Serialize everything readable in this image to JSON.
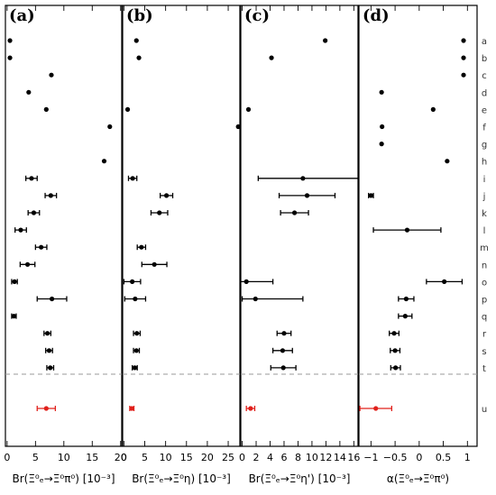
{
  "chart_data": {
    "type": "scatter",
    "row_labels": [
      "a",
      "b",
      "c",
      "d",
      "e",
      "f",
      "g",
      "h",
      "i",
      "j",
      "k",
      "l",
      "m",
      "n",
      "o",
      "p",
      "q",
      "r",
      "s",
      "t",
      "u"
    ],
    "highlight": {
      "row": "u",
      "color": "#e0201b"
    },
    "default_color": "#000000",
    "legend": null,
    "panels": [
      {
        "tag": "(a)",
        "xlabel": "Br(Ξ⁰ₑ→Ξ⁰π⁰) [10⁻³]",
        "xlim": [
          -0.3,
          20.2
        ],
        "xticks": [
          0,
          5,
          10,
          15,
          20
        ],
        "xtick_labels": [
          "0",
          "5",
          "10",
          "15",
          "20"
        ],
        "points": [
          {
            "row": "a",
            "value": 0.5
          },
          {
            "row": "b",
            "value": 0.5
          },
          {
            "row": "c",
            "value": 7.8
          },
          {
            "row": "d",
            "value": 3.8
          },
          {
            "row": "e",
            "value": 6.9
          },
          {
            "row": "f",
            "value": 18.1
          },
          {
            "row": "g",
            "value": null
          },
          {
            "row": "h",
            "value": 17.1
          },
          {
            "row": "i",
            "value": 4.3,
            "err": [
              1.0,
              1.0
            ]
          },
          {
            "row": "j",
            "value": 7.7,
            "err": [
              1.0,
              1.0
            ]
          },
          {
            "row": "k",
            "value": 4.7,
            "err": [
              1.0,
              1.0
            ]
          },
          {
            "row": "l",
            "value": 2.4,
            "err": [
              1.0,
              1.0
            ]
          },
          {
            "row": "m",
            "value": 6.0,
            "err": [
              1.0,
              1.0
            ]
          },
          {
            "row": "n",
            "value": 3.6,
            "err": [
              1.3,
              1.3
            ]
          },
          {
            "row": "o",
            "value": 1.3,
            "err": [
              0.5,
              0.5
            ]
          },
          {
            "row": "p",
            "value": 7.9,
            "err": [
              2.6,
              2.6
            ]
          },
          {
            "row": "q",
            "value": 1.2,
            "err": [
              0.4,
              0.4
            ]
          },
          {
            "row": "r",
            "value": 7.1,
            "err": [
              0.6,
              0.6
            ]
          },
          {
            "row": "s",
            "value": 7.4,
            "err": [
              0.6,
              0.6
            ]
          },
          {
            "row": "t",
            "value": 7.6,
            "err": [
              0.6,
              0.6
            ]
          },
          {
            "row": "u",
            "value": 6.9,
            "err": [
              1.6,
              1.6
            ]
          }
        ]
      },
      {
        "tag": "(b)",
        "xlabel": "Br(Ξ⁰ₑ→Ξ⁰η) [10⁻³]",
        "xlim": [
          -0.3,
          27.8
        ],
        "xticks": [
          0,
          5,
          10,
          15,
          20,
          25
        ],
        "xtick_labels": [
          "0",
          "5",
          "10",
          "15",
          "20",
          "25"
        ],
        "points": [
          {
            "row": "a",
            "value": 3.0
          },
          {
            "row": "b",
            "value": 3.6
          },
          {
            "row": "c",
            "value": null
          },
          {
            "row": "d",
            "value": null
          },
          {
            "row": "e",
            "value": 0.9
          },
          {
            "row": "f",
            "value": 27.4
          },
          {
            "row": "g",
            "value": null
          },
          {
            "row": "h",
            "value": null
          },
          {
            "row": "i",
            "value": 2.1,
            "err": [
              1.0,
              1.0
            ]
          },
          {
            "row": "j",
            "value": 10.2,
            "err": [
              1.5,
              1.5
            ]
          },
          {
            "row": "k",
            "value": 8.5,
            "err": [
              2.0,
              2.0
            ]
          },
          {
            "row": "l",
            "value": null
          },
          {
            "row": "m",
            "value": 4.2,
            "err": [
              1.0,
              1.0
            ]
          },
          {
            "row": "n",
            "value": 7.3,
            "err": [
              3.0,
              3.0
            ]
          },
          {
            "row": "o",
            "value": 2.0,
            "err": [
              2.0,
              2.0
            ]
          },
          {
            "row": "p",
            "value": 2.7,
            "err": [
              2.5,
              2.5
            ]
          },
          {
            "row": "q",
            "value": null
          },
          {
            "row": "r",
            "value": 3.1,
            "err": [
              0.8,
              0.8
            ]
          },
          {
            "row": "s",
            "value": 3.0,
            "err": [
              0.7,
              0.7
            ]
          },
          {
            "row": "t",
            "value": 2.6,
            "err": [
              0.6,
              0.6
            ]
          },
          {
            "row": "u",
            "value": 1.9,
            "err": [
              0.5,
              0.5
            ]
          }
        ]
      },
      {
        "tag": "(c)",
        "xlabel": "Br(Ξ⁰ₑ→Ξ⁰η') [10⁻³]",
        "xlim": [
          -0.2,
          16.6
        ],
        "xticks": [
          0,
          2,
          4,
          6,
          8,
          10,
          12,
          14,
          16
        ],
        "xtick_labels": [
          "0",
          "2",
          "4",
          "6",
          "8",
          "10",
          "12",
          "14",
          "16"
        ],
        "points": [
          {
            "row": "a",
            "value": 11.9
          },
          {
            "row": "b",
            "value": 4.2
          },
          {
            "row": "c",
            "value": null
          },
          {
            "row": "d",
            "value": null
          },
          {
            "row": "e",
            "value": 0.9
          },
          {
            "row": "f",
            "value": null
          },
          {
            "row": "g",
            "value": null
          },
          {
            "row": "h",
            "value": null
          },
          {
            "row": "i",
            "value": 8.7,
            "err": [
              6.4,
              7.9
            ]
          },
          {
            "row": "j",
            "value": 9.3,
            "err": [
              4.0,
              4.0
            ]
          },
          {
            "row": "k",
            "value": 7.5,
            "err": [
              2.0,
              2.0
            ]
          },
          {
            "row": "l",
            "value": null
          },
          {
            "row": "m",
            "value": null
          },
          {
            "row": "n",
            "value": null
          },
          {
            "row": "o",
            "value": 0.6,
            "err": [
              0.8,
              3.8
            ]
          },
          {
            "row": "p",
            "value": 1.9,
            "err": [
              1.9,
              6.8
            ]
          },
          {
            "row": "q",
            "value": null
          },
          {
            "row": "r",
            "value": 6.0,
            "err": [
              1.0,
              1.0
            ]
          },
          {
            "row": "s",
            "value": 5.8,
            "err": [
              1.4,
              1.4
            ]
          },
          {
            "row": "t",
            "value": 5.9,
            "err": [
              1.8,
              1.8
            ]
          },
          {
            "row": "u",
            "value": 1.2,
            "err": [
              0.6,
              0.6
            ]
          }
        ]
      },
      {
        "tag": "(d)",
        "xlabel": "α(Ξ⁰ₑ→Ξ⁰π⁰)",
        "xlim": [
          -1.25,
          1.2
        ],
        "xticks": [
          -1,
          -0.5,
          0,
          0.5,
          1
        ],
        "xtick_labels": [
          "−1",
          "−0.5",
          "0",
          "0.5",
          "1"
        ],
        "points": [
          {
            "row": "a",
            "value": 0.92
          },
          {
            "row": "b",
            "value": 0.92
          },
          {
            "row": "c",
            "value": 0.92
          },
          {
            "row": "d",
            "value": -0.78
          },
          {
            "row": "e",
            "value": 0.29
          },
          {
            "row": "f",
            "value": -0.77
          },
          {
            "row": "g",
            "value": -0.78
          },
          {
            "row": "h",
            "value": 0.58
          },
          {
            "row": "i",
            "value": null
          },
          {
            "row": "j",
            "value": -1.0,
            "err": [
              0.05,
              0.05
            ]
          },
          {
            "row": "k",
            "value": null
          },
          {
            "row": "l",
            "value": -0.25,
            "err": [
              0.7,
              0.7
            ]
          },
          {
            "row": "m",
            "value": null
          },
          {
            "row": "n",
            "value": null
          },
          {
            "row": "o",
            "value": 0.52,
            "err": [
              0.37,
              0.37
            ]
          },
          {
            "row": "p",
            "value": -0.27,
            "err": [
              0.16,
              0.16
            ]
          },
          {
            "row": "q",
            "value": -0.29,
            "err": [
              0.14,
              0.14
            ]
          },
          {
            "row": "r",
            "value": -0.52,
            "err": [
              0.1,
              0.1
            ]
          },
          {
            "row": "s",
            "value": -0.5,
            "err": [
              0.1,
              0.1
            ]
          },
          {
            "row": "t",
            "value": -0.49,
            "err": [
              0.1,
              0.1
            ]
          },
          {
            "row": "u",
            "value": -0.9,
            "err": [
              0.33,
              0.33
            ]
          }
        ]
      }
    ]
  }
}
